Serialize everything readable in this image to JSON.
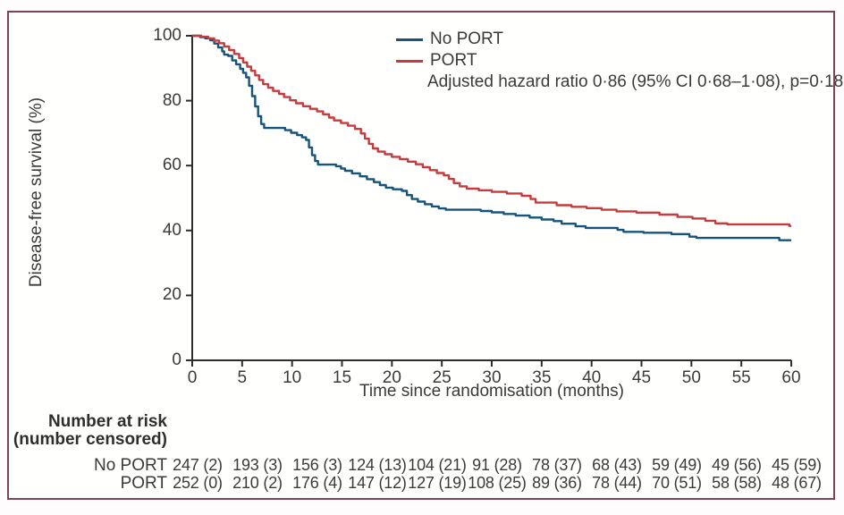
{
  "figure": {
    "border_color": "#7d4457",
    "background": "#fffffe",
    "axis_color": "#2d2d2d",
    "text_color": "#3a3a3a"
  },
  "chart_data": {
    "type": "line",
    "subtype": "kaplan-meier-step",
    "title": "",
    "xlabel": "Time since randomisation (months)",
    "ylabel": "Disease-free survival (%)",
    "xlim": [
      0,
      60
    ],
    "ylim": [
      0,
      100
    ],
    "x_ticks": [
      0,
      5,
      10,
      15,
      20,
      25,
      30,
      35,
      40,
      45,
      50,
      55,
      60
    ],
    "y_ticks": [
      0,
      20,
      40,
      60,
      80,
      100
    ],
    "grid": false,
    "legend_position": "top-right-inside",
    "annotation": "Adjusted hazard ratio 0·86 (95% CI 0·68–1·08), p=0·18",
    "series": [
      {
        "name": "No PORT",
        "color": "#17547a",
        "steps": [
          [
            0,
            100
          ],
          [
            0.8,
            99.6
          ],
          [
            1.3,
            99.2
          ],
          [
            1.8,
            98.6
          ],
          [
            2.2,
            97.6
          ],
          [
            2.6,
            96.4
          ],
          [
            3.0,
            95.2
          ],
          [
            3.2,
            94.2
          ],
          [
            3.6,
            93.8
          ],
          [
            4.0,
            92.4
          ],
          [
            4.4,
            91.2
          ],
          [
            4.8,
            89.8
          ],
          [
            5.1,
            88.6
          ],
          [
            5.4,
            87.2
          ],
          [
            5.7,
            84.6
          ],
          [
            6.0,
            81.4
          ],
          [
            6.3,
            78.2
          ],
          [
            6.6,
            75.2
          ],
          [
            6.9,
            72.8
          ],
          [
            7.2,
            71.6
          ],
          [
            9.3,
            70.9
          ],
          [
            9.9,
            70.1
          ],
          [
            10.5,
            69.4
          ],
          [
            11.0,
            68.7
          ],
          [
            11.4,
            67.9
          ],
          [
            11.7,
            65.6
          ],
          [
            12.0,
            63.2
          ],
          [
            12.3,
            61.4
          ],
          [
            12.6,
            60.3
          ],
          [
            14.4,
            59.8
          ],
          [
            14.9,
            59.1
          ],
          [
            15.3,
            58.4
          ],
          [
            16.0,
            57.6
          ],
          [
            16.8,
            56.7
          ],
          [
            17.5,
            55.8
          ],
          [
            18.2,
            54.9
          ],
          [
            18.8,
            54.0
          ],
          [
            19.4,
            53.2
          ],
          [
            20.1,
            52.7
          ],
          [
            21.0,
            52.2
          ],
          [
            21.5,
            50.9
          ],
          [
            22.0,
            49.7
          ],
          [
            22.6,
            48.9
          ],
          [
            23.3,
            48.1
          ],
          [
            24.0,
            47.4
          ],
          [
            24.7,
            46.8
          ],
          [
            25.4,
            46.4
          ],
          [
            28.9,
            46.0
          ],
          [
            30.0,
            45.6
          ],
          [
            31.2,
            45.1
          ],
          [
            32.4,
            44.6
          ],
          [
            33.8,
            44.0
          ],
          [
            35.0,
            43.4
          ],
          [
            36.2,
            42.9
          ],
          [
            37.0,
            42.1
          ],
          [
            38.4,
            41.3
          ],
          [
            39.4,
            40.8
          ],
          [
            42.6,
            40.2
          ],
          [
            43.2,
            39.6
          ],
          [
            45.2,
            39.3
          ],
          [
            48.0,
            38.9
          ],
          [
            49.8,
            38.1
          ],
          [
            50.5,
            37.7
          ],
          [
            58.5,
            37.7
          ],
          [
            58.8,
            37.0
          ],
          [
            60,
            37.0
          ]
        ]
      },
      {
        "name": "PORT",
        "color": "#c53b3e",
        "steps": [
          [
            0,
            100
          ],
          [
            0.9,
            99.7
          ],
          [
            1.6,
            99.2
          ],
          [
            2.2,
            98.5
          ],
          [
            2.7,
            97.7
          ],
          [
            3.2,
            96.7
          ],
          [
            3.7,
            95.6
          ],
          [
            4.2,
            94.4
          ],
          [
            4.7,
            93.1
          ],
          [
            5.1,
            91.8
          ],
          [
            5.5,
            90.5
          ],
          [
            5.9,
            89.2
          ],
          [
            6.3,
            87.8
          ],
          [
            6.7,
            86.4
          ],
          [
            7.1,
            85.1
          ],
          [
            7.6,
            84.0
          ],
          [
            8.1,
            83.0
          ],
          [
            8.7,
            82.1
          ],
          [
            9.2,
            81.1
          ],
          [
            9.8,
            80.1
          ],
          [
            10.4,
            79.2
          ],
          [
            11.1,
            78.3
          ],
          [
            11.8,
            77.5
          ],
          [
            12.5,
            76.7
          ],
          [
            13.1,
            75.8
          ],
          [
            13.7,
            74.8
          ],
          [
            14.2,
            73.9
          ],
          [
            14.9,
            73.1
          ],
          [
            15.6,
            72.3
          ],
          [
            16.3,
            71.3
          ],
          [
            16.9,
            69.9
          ],
          [
            17.3,
            68.3
          ],
          [
            17.7,
            66.7
          ],
          [
            18.1,
            65.3
          ],
          [
            18.6,
            64.3
          ],
          [
            19.3,
            63.5
          ],
          [
            20.0,
            62.7
          ],
          [
            20.8,
            62.0
          ],
          [
            21.6,
            61.2
          ],
          [
            22.4,
            60.4
          ],
          [
            23.1,
            59.5
          ],
          [
            23.8,
            58.6
          ],
          [
            24.5,
            57.7
          ],
          [
            25.2,
            57.0
          ],
          [
            25.7,
            55.9
          ],
          [
            26.2,
            54.6
          ],
          [
            26.8,
            53.6
          ],
          [
            27.5,
            52.9
          ],
          [
            28.7,
            52.4
          ],
          [
            30.0,
            51.9
          ],
          [
            31.5,
            51.4
          ],
          [
            33.0,
            50.7
          ],
          [
            33.9,
            49.7
          ],
          [
            34.4,
            48.6
          ],
          [
            36.5,
            47.8
          ],
          [
            38.0,
            47.3
          ],
          [
            39.5,
            46.9
          ],
          [
            41.0,
            46.4
          ],
          [
            42.5,
            45.9
          ],
          [
            44.5,
            45.5
          ],
          [
            46.8,
            44.9
          ],
          [
            48.6,
            44.2
          ],
          [
            50.1,
            43.7
          ],
          [
            51.4,
            43.0
          ],
          [
            52.4,
            42.2
          ],
          [
            53.6,
            41.9
          ],
          [
            59.6,
            41.9
          ],
          [
            59.8,
            41.4
          ],
          [
            60,
            41.4
          ]
        ]
      }
    ],
    "number_at_risk": {
      "header_line1": "Number at risk",
      "header_line2": "(number censored)",
      "times": [
        0,
        6,
        12,
        18,
        24,
        30,
        36,
        42,
        48,
        54,
        60
      ],
      "rows": [
        {
          "label": "No PORT",
          "values": [
            "247 (2)",
            "193 (3)",
            "156 (3)",
            "124 (13)",
            "104 (21)",
            "91 (28)",
            "78 (37)",
            "68 (43)",
            "59 (49)",
            "49 (56)",
            "45 (59)"
          ]
        },
        {
          "label": "PORT",
          "values": [
            "252 (0)",
            "210 (2)",
            "176 (4)",
            "147 (12)",
            "127 (19)",
            "108 (25)",
            "89 (36)",
            "78 (44)",
            "70 (51)",
            "58 (58)",
            "48 (67)"
          ]
        }
      ]
    }
  }
}
